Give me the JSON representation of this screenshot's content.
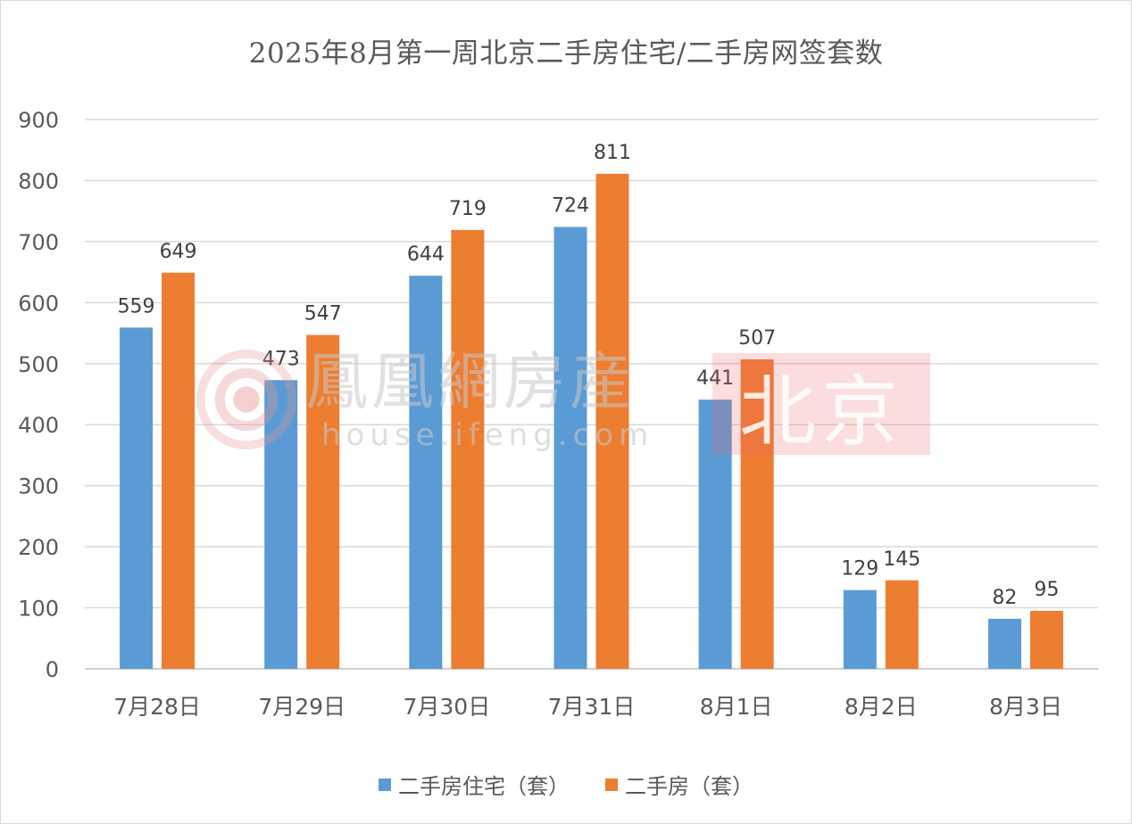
{
  "title": "2025年8月第一周北京二手房住宅/二手房网签套数",
  "watermark": {
    "brand_cn": "鳳凰網房産",
    "brand_en": "house.ifeng.com",
    "city_tag": "北京"
  },
  "legend": {
    "items": [
      {
        "label": "二手房住宅（套）",
        "color": "#5b9bd5"
      },
      {
        "label": "二手房（套）",
        "color": "#ed7d31"
      }
    ]
  },
  "chart_data": {
    "type": "bar",
    "title": "2025年8月第一周北京二手房住宅/二手房网签套数",
    "xlabel": "",
    "ylabel": "",
    "categories": [
      "7月28日",
      "7月29日",
      "7月30日",
      "7月31日",
      "8月1日",
      "8月2日",
      "8月3日"
    ],
    "series": [
      {
        "name": "二手房住宅（套）",
        "color": "#5b9bd5",
        "values": [
          559,
          473,
          644,
          724,
          441,
          129,
          82
        ]
      },
      {
        "name": "二手房（套）",
        "color": "#ed7d31",
        "values": [
          649,
          547,
          719,
          811,
          507,
          145,
          95
        ]
      }
    ],
    "ylim": [
      0,
      900
    ],
    "yticks": [
      0,
      100,
      200,
      300,
      400,
      500,
      600,
      700,
      800,
      900
    ],
    "grid": true,
    "data_labels": true,
    "legend_position": "bottom"
  }
}
